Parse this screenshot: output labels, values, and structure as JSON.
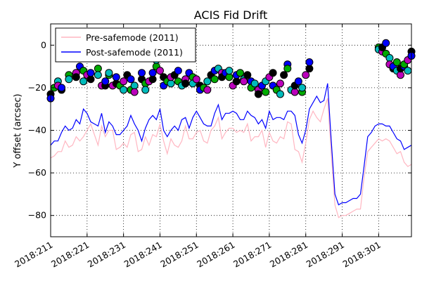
{
  "chart_data": {
    "type": "line",
    "title": "ACIS Fid Drift",
    "xlabel": "",
    "ylabel": "Y offset (arcsec)",
    "xlim": [
      211,
      310
    ],
    "ylim": [
      -90,
      10
    ],
    "x_ticks": [
      "2018:211",
      "2018:221",
      "2018:231",
      "2018:241",
      "2018:251",
      "2018:261",
      "2018:271",
      "2018:281",
      "2018:291",
      "2018:301"
    ],
    "y_ticks": [
      -80,
      -60,
      -40,
      -20,
      0
    ],
    "grid": true,
    "legend_position": "top-left",
    "series": [
      {
        "name": "Pre-safemode (2011)",
        "color": "#ffb6c1",
        "x": [
          211,
          212,
          213,
          214,
          215,
          216,
          217,
          218,
          219,
          220,
          221,
          222,
          223,
          224,
          225,
          226,
          227,
          228,
          229,
          230,
          231,
          232,
          233,
          234,
          235,
          236,
          237,
          238,
          239,
          240,
          241,
          242,
          243,
          244,
          245,
          246,
          247,
          248,
          249,
          250,
          251,
          252,
          253,
          254,
          255,
          256,
          257,
          258,
          259,
          260,
          261,
          262,
          263,
          264,
          265,
          266,
          267,
          268,
          269,
          270,
          271,
          272,
          273,
          274,
          275,
          276,
          277,
          278,
          279,
          280,
          281,
          282,
          283,
          284,
          285,
          286,
          287,
          288,
          289,
          290,
          291,
          292,
          293,
          294,
          295,
          296,
          297,
          298,
          299,
          300,
          301,
          302,
          303,
          304,
          305,
          306,
          307,
          308,
          309,
          310
        ],
        "values": [
          -53,
          -52,
          -50,
          -50,
          -45,
          -48,
          -47,
          -43,
          -45,
          -43,
          -40,
          -37,
          -42,
          -47,
          -38,
          -43,
          -40,
          -40,
          -49,
          -48,
          -46,
          -48,
          -42,
          -41,
          -50,
          -49,
          -43,
          -47,
          -42,
          -43,
          -37,
          -45,
          -51,
          -44,
          -47,
          -48,
          -45,
          -38,
          -44,
          -44,
          -41,
          -40,
          -45,
          -46,
          -40,
          -38,
          -34,
          -44,
          -41,
          -39,
          -39,
          -41,
          -40,
          -41,
          -37,
          -45,
          -43,
          -43,
          -40,
          -48,
          -41,
          -45,
          -46,
          -43,
          -44,
          -36,
          -37,
          -49,
          -50,
          -55,
          -46,
          -35,
          -31,
          -34,
          -36,
          -30,
          -25,
          -51,
          -75,
          -81,
          -80,
          -80,
          -79,
          -78,
          -77,
          -77,
          -62,
          -50,
          -48,
          -46,
          -44,
          -45,
          -44,
          -45,
          -48,
          -51,
          -50,
          -55,
          -57,
          -56
        ]
      },
      {
        "name": "Post-safemode (2011)",
        "color": "#0000ff",
        "x": [
          211,
          212,
          213,
          214,
          215,
          216,
          217,
          218,
          219,
          220,
          221,
          222,
          223,
          224,
          225,
          226,
          227,
          228,
          229,
          230,
          231,
          232,
          233,
          234,
          235,
          236,
          237,
          238,
          239,
          240,
          241,
          242,
          243,
          244,
          245,
          246,
          247,
          248,
          249,
          250,
          251,
          252,
          253,
          254,
          255,
          256,
          257,
          258,
          259,
          260,
          261,
          262,
          263,
          264,
          265,
          266,
          267,
          268,
          269,
          270,
          271,
          272,
          273,
          274,
          275,
          276,
          277,
          278,
          279,
          280,
          281,
          282,
          283,
          284,
          285,
          286,
          287,
          288,
          289,
          290,
          291,
          292,
          293,
          294,
          295,
          296,
          297,
          298,
          299,
          300,
          301,
          302,
          303,
          304,
          305,
          306,
          307,
          308,
          309,
          310
        ],
        "values": [
          -47,
          -45,
          -45,
          -41,
          -38,
          -40,
          -39,
          -35,
          -37,
          -30,
          -32,
          -36,
          -37,
          -38,
          -32,
          -41,
          -36,
          -38,
          -42,
          -42,
          -40,
          -38,
          -33,
          -37,
          -40,
          -45,
          -39,
          -35,
          -33,
          -35,
          -30,
          -40,
          -43,
          -40,
          -38,
          -40,
          -35,
          -34,
          -39,
          -34,
          -31,
          -34,
          -37,
          -38,
          -38,
          -32,
          -28,
          -35,
          -32,
          -32,
          -31,
          -32,
          -35,
          -35,
          -31,
          -33,
          -34,
          -37,
          -35,
          -39,
          -31,
          -35,
          -34,
          -34,
          -35,
          -31,
          -31,
          -33,
          -42,
          -46,
          -40,
          -30,
          -27,
          -24,
          -27,
          -26,
          -18,
          -45,
          -70,
          -75,
          -74,
          -74,
          -73,
          -72,
          -72,
          -70,
          -57,
          -43,
          -41,
          -38,
          -37,
          -37,
          -38,
          -38,
          -41,
          -44,
          -45,
          -49,
          -48,
          -47
        ]
      }
    ],
    "scatter_colors": [
      "#000000",
      "#0000ff",
      "#00aa00",
      "#00bbbb",
      "#bb00bb"
    ],
    "scatter_points": [
      {
        "x": 211,
        "y": -23
      },
      {
        "x": 211,
        "y": -25
      },
      {
        "x": 212,
        "y": -20
      },
      {
        "x": 213,
        "y": -17
      },
      {
        "x": 213,
        "y": -19
      },
      {
        "x": 214,
        "y": -21
      },
      {
        "x": 214,
        "y": -20
      },
      {
        "x": 216,
        "y": -14
      },
      {
        "x": 216,
        "y": -16
      },
      {
        "x": 218,
        "y": -13
      },
      {
        "x": 218,
        "y": -15
      },
      {
        "x": 219,
        "y": -10
      },
      {
        "x": 220,
        "y": -12
      },
      {
        "x": 220,
        "y": -17
      },
      {
        "x": 221,
        "y": -14
      },
      {
        "x": 222,
        "y": -16
      },
      {
        "x": 222,
        "y": -13
      },
      {
        "x": 224,
        "y": -11
      },
      {
        "x": 224,
        "y": -14
      },
      {
        "x": 225,
        "y": -19
      },
      {
        "x": 226,
        "y": -19
      },
      {
        "x": 226,
        "y": -17
      },
      {
        "x": 227,
        "y": -14
      },
      {
        "x": 227,
        "y": -13
      },
      {
        "x": 228,
        "y": -19
      },
      {
        "x": 229,
        "y": -18
      },
      {
        "x": 229,
        "y": -15
      },
      {
        "x": 230,
        "y": -19
      },
      {
        "x": 231,
        "y": -21
      },
      {
        "x": 231,
        "y": -17
      },
      {
        "x": 232,
        "y": -14
      },
      {
        "x": 233,
        "y": -16
      },
      {
        "x": 233,
        "y": -21
      },
      {
        "x": 234,
        "y": -19
      },
      {
        "x": 234,
        "y": -22
      },
      {
        "x": 236,
        "y": -16
      },
      {
        "x": 236,
        "y": -13
      },
      {
        "x": 237,
        "y": -18
      },
      {
        "x": 237,
        "y": -21
      },
      {
        "x": 238,
        "y": -17
      },
      {
        "x": 239,
        "y": -16
      },
      {
        "x": 239,
        "y": -13
      },
      {
        "x": 240,
        "y": -10
      },
      {
        "x": 240,
        "y": -7
      },
      {
        "x": 241,
        "y": -12
      },
      {
        "x": 242,
        "y": -15
      },
      {
        "x": 242,
        "y": -19
      },
      {
        "x": 243,
        "y": -17
      },
      {
        "x": 244,
        "y": -18
      },
      {
        "x": 244,
        "y": -15
      },
      {
        "x": 245,
        "y": -14
      },
      {
        "x": 246,
        "y": -12
      },
      {
        "x": 246,
        "y": -17
      },
      {
        "x": 247,
        "y": -19
      },
      {
        "x": 248,
        "y": -16
      },
      {
        "x": 248,
        "y": -18
      },
      {
        "x": 249,
        "y": -13
      },
      {
        "x": 250,
        "y": -15
      },
      {
        "x": 250,
        "y": -18
      },
      {
        "x": 251,
        "y": -16
      },
      {
        "x": 252,
        "y": -19
      },
      {
        "x": 252,
        "y": -21
      },
      {
        "x": 253,
        "y": -20
      },
      {
        "x": 254,
        "y": -17
      },
      {
        "x": 254,
        "y": -21
      },
      {
        "x": 255,
        "y": -14
      },
      {
        "x": 256,
        "y": -12
      },
      {
        "x": 256,
        "y": -16
      },
      {
        "x": 257,
        "y": -11
      },
      {
        "x": 258,
        "y": -13
      },
      {
        "x": 258,
        "y": -15
      },
      {
        "x": 259,
        "y": -13
      },
      {
        "x": 260,
        "y": -15
      },
      {
        "x": 260,
        "y": -12
      },
      {
        "x": 261,
        "y": -19
      },
      {
        "x": 262,
        "y": -17
      },
      {
        "x": 262,
        "y": -14
      },
      {
        "x": 263,
        "y": -13
      },
      {
        "x": 264,
        "y": -16
      },
      {
        "x": 264,
        "y": -17
      },
      {
        "x": 265,
        "y": -14
      },
      {
        "x": 266,
        "y": -17
      },
      {
        "x": 266,
        "y": -20
      },
      {
        "x": 267,
        "y": -18
      },
      {
        "x": 268,
        "y": -21
      },
      {
        "x": 268,
        "y": -23
      },
      {
        "x": 269,
        "y": -19
      },
      {
        "x": 270,
        "y": -22
      },
      {
        "x": 270,
        "y": -17
      },
      {
        "x": 271,
        "y": -15
      },
      {
        "x": 272,
        "y": -13
      },
      {
        "x": 272,
        "y": -19
      },
      {
        "x": 273,
        "y": -21
      },
      {
        "x": 274,
        "y": -23
      },
      {
        "x": 274,
        "y": -18
      },
      {
        "x": 275,
        "y": -14
      },
      {
        "x": 276,
        "y": -9
      },
      {
        "x": 276,
        "y": -11
      },
      {
        "x": 277,
        "y": -21
      },
      {
        "x": 278,
        "y": -22
      },
      {
        "x": 278,
        "y": -19
      },
      {
        "x": 279,
        "y": -17
      },
      {
        "x": 280,
        "y": -22
      },
      {
        "x": 280,
        "y": -20
      },
      {
        "x": 281,
        "y": -14
      },
      {
        "x": 282,
        "y": -11
      },
      {
        "x": 282,
        "y": -8
      },
      {
        "x": 301,
        "y": -1
      },
      {
        "x": 301,
        "y": -2
      },
      {
        "x": 302,
        "y": -3
      },
      {
        "x": 302,
        "y": -1
      },
      {
        "x": 303,
        "y": 1
      },
      {
        "x": 303,
        "y": -4
      },
      {
        "x": 304,
        "y": -6
      },
      {
        "x": 304,
        "y": -9
      },
      {
        "x": 305,
        "y": -11
      },
      {
        "x": 305,
        "y": -10
      },
      {
        "x": 306,
        "y": -8
      },
      {
        "x": 306,
        "y": -12
      },
      {
        "x": 307,
        "y": -14
      },
      {
        "x": 307,
        "y": -11
      },
      {
        "x": 308,
        "y": -10
      },
      {
        "x": 308,
        "y": -9
      },
      {
        "x": 309,
        "y": -12
      },
      {
        "x": 309,
        "y": -7
      },
      {
        "x": 310,
        "y": -3
      },
      {
        "x": 310,
        "y": -5
      }
    ]
  }
}
